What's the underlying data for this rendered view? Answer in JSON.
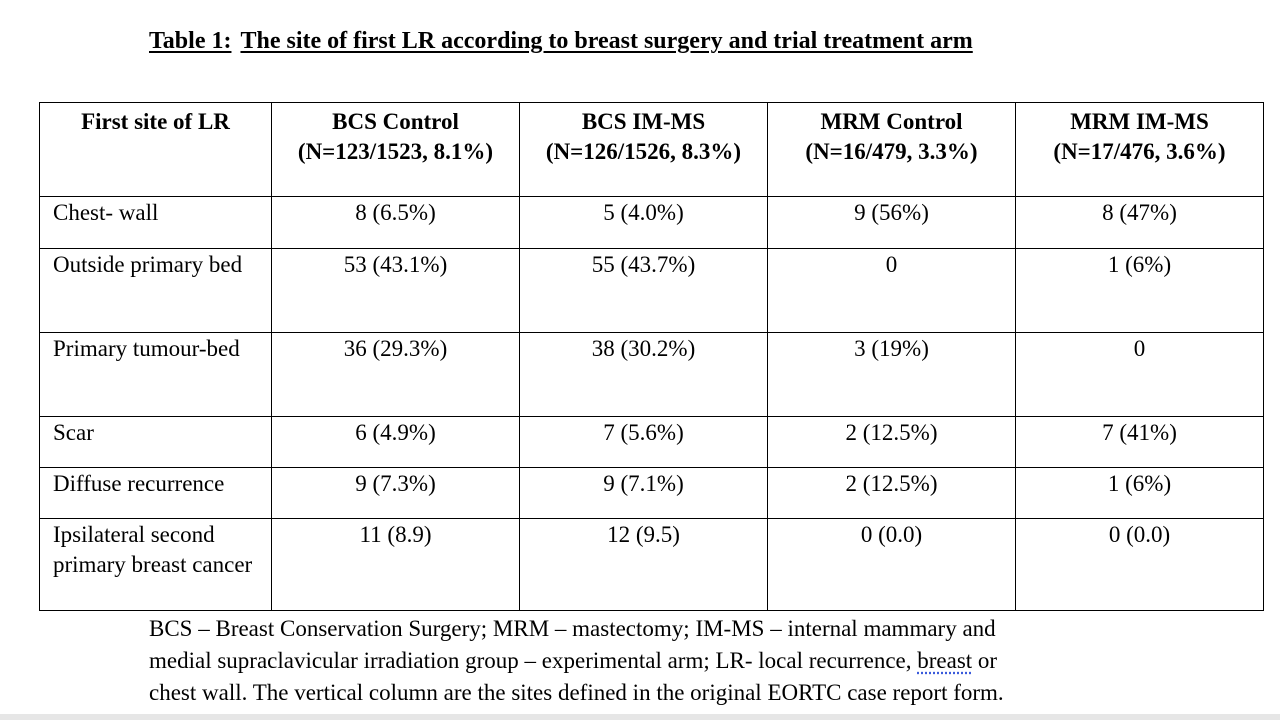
{
  "title": {
    "label": "Table 1:",
    "text": "The site of first LR according to breast surgery and trial treatment arm"
  },
  "table": {
    "headers": [
      {
        "line1": "First site of LR",
        "line2": ""
      },
      {
        "line1": "BCS Control",
        "line2": "(N=123/1523, 8.1%)"
      },
      {
        "line1": "BCS IM-MS",
        "line2": "(N=126/1526, 8.3%)"
      },
      {
        "line1": "MRM Control",
        "line2": "(N=16/479, 3.3%)"
      },
      {
        "line1": "MRM IM-MS",
        "line2": "(N=17/476, 3.6%)"
      }
    ],
    "rows": [
      {
        "site": "Chest- wall",
        "values": [
          "8 (6.5%)",
          "5 (4.0%)",
          "9 (56%)",
          "8 (47%)"
        ]
      },
      {
        "site": "Outside primary bed",
        "values": [
          "53 (43.1%)",
          "55 (43.7%)",
          "0",
          "1 (6%)"
        ]
      },
      {
        "site": "Primary tumour-bed",
        "values": [
          "36 (29.3%)",
          "38 (30.2%)",
          "3 (19%)",
          "0"
        ]
      },
      {
        "site": "Scar",
        "values": [
          "6 (4.9%)",
          "7 (5.6%)",
          "2 (12.5%)",
          "7 (41%)"
        ]
      },
      {
        "site": "Diffuse recurrence",
        "values": [
          "9 (7.3%)",
          "9 (7.1%)",
          "2 (12.5%)",
          "1 (6%)"
        ]
      },
      {
        "site": "Ipsilateral second primary breast cancer",
        "values": [
          "11 (8.9)",
          "12 (9.5)",
          "0 (0.0)",
          "0 (0.0)"
        ]
      }
    ]
  },
  "footnote": {
    "line1": "BCS – Breast Conservation Surgery; MRM – mastectomy; IM-MS – internal mammary and",
    "line2_part1": "medial supraclavicular irradiation group – experimental arm; LR- local recurrence, ",
    "line2_word": "breast",
    "line2_part2": " or",
    "line3": "chest wall. The vertical column are the sites defined in the original EORTC case report form."
  }
}
